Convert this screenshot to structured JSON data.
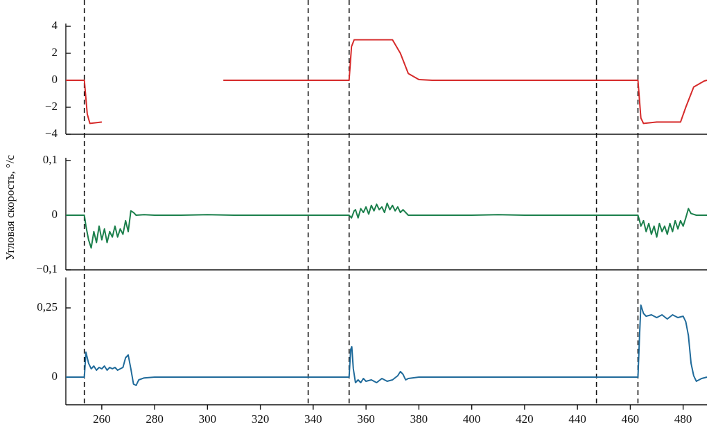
{
  "chart_data": [
    {
      "type": "line",
      "y_label": "Угловая скорость, °/с",
      "xlim": [
        246.4,
        489
      ],
      "ylim": [
        -4,
        4
      ],
      "yticks": [
        {
          "value": -4,
          "label": "−4"
        },
        {
          "value": -2,
          "label": "−2"
        },
        0,
        2,
        4
      ],
      "vlines": [
        253.4,
        338.1,
        353.6,
        447.2,
        462.9
      ],
      "series": [
        {
          "color": "#d62a2a",
          "x": [
            246.4,
            253.4,
            254.5,
            255.5,
            260,
            283,
            306,
            353.6,
            354.5,
            355.5,
            370,
            373,
            376,
            380,
            385,
            462.9,
            464,
            465,
            470,
            479,
            481,
            484,
            488,
            489
          ],
          "values": [
            0,
            0,
            -2.5,
            -3.2,
            -3.1,
            null,
            0,
            0,
            2.5,
            3.0,
            3.0,
            2,
            0.5,
            0.05,
            0,
            0,
            -2.8,
            -3.2,
            -3.1,
            -3.1,
            -2,
            -0.5,
            -0.05,
            0
          ]
        }
      ]
    },
    {
      "type": "line",
      "xlim": [
        246.4,
        489
      ],
      "ylim": [
        -0.1,
        0.1
      ],
      "yticks": [
        {
          "value": -0.1,
          "label": "−0,1"
        },
        0,
        {
          "value": 0.1,
          "label": "0,1"
        }
      ],
      "series": [
        {
          "color": "#1a7f4b",
          "x": [
            246.4,
            252,
            253.4,
            254,
            255,
            256,
            257,
            258,
            259,
            260,
            261,
            262,
            263,
            264,
            265,
            266,
            267,
            268,
            269,
            270,
            271,
            272,
            273,
            276,
            280,
            290,
            300,
            310,
            320,
            330,
            340,
            350,
            353.6,
            354.5,
            355.5,
            356,
            357,
            358,
            359,
            360,
            361,
            362,
            363,
            364,
            365,
            366,
            367,
            368,
            369,
            370,
            371,
            372,
            373,
            374,
            376,
            380,
            390,
            400,
            410,
            420,
            430,
            440,
            450,
            462.9,
            463.5,
            464,
            465,
            466,
            467,
            468,
            469,
            470,
            471,
            472,
            473,
            474,
            475,
            476,
            477,
            478,
            479,
            480,
            481,
            482,
            483,
            485,
            489
          ],
          "values": [
            0,
            0,
            0,
            -0.02,
            -0.045,
            -0.06,
            -0.03,
            -0.05,
            -0.02,
            -0.045,
            -0.025,
            -0.05,
            -0.03,
            -0.04,
            -0.02,
            -0.04,
            -0.025,
            -0.035,
            -0.01,
            -0.03,
            0.008,
            0.005,
            0,
            0.001,
            0,
            0,
            0.001,
            0,
            0,
            0,
            0,
            0,
            0,
            -0.005,
            0.008,
            0.01,
            -0.005,
            0.012,
            0.005,
            0.015,
            0.002,
            0.018,
            0.008,
            0.02,
            0.01,
            0.015,
            0.005,
            0.022,
            0.01,
            0.018,
            0.008,
            0.015,
            0.005,
            0.01,
            0,
            0,
            0,
            0,
            0.001,
            0,
            0,
            0,
            0,
            0,
            -0.01,
            -0.02,
            -0.01,
            -0.03,
            -0.015,
            -0.035,
            -0.02,
            -0.04,
            -0.015,
            -0.03,
            -0.02,
            -0.035,
            -0.015,
            -0.03,
            -0.01,
            -0.025,
            -0.01,
            -0.02,
            -0.005,
            0.012,
            0.003,
            0,
            0
          ]
        }
      ]
    },
    {
      "type": "line",
      "xlim": [
        246.4,
        489
      ],
      "ylim": [
        -0.1,
        0.35
      ],
      "xticks": [
        260,
        280,
        300,
        320,
        340,
        360,
        380,
        400,
        420,
        440,
        460,
        480
      ],
      "yticks": [
        0,
        {
          "value": 0.25,
          "label": "0,25"
        }
      ],
      "series": [
        {
          "color": "#1f6a9a",
          "x": [
            246.4,
            253.4,
            254,
            255,
            256,
            257,
            258,
            259,
            260,
            261,
            262,
            263,
            264,
            265,
            266,
            267,
            268,
            269,
            270,
            271,
            272,
            273,
            274,
            276,
            280,
            300,
            340,
            353.6,
            354.2,
            354.6,
            355.2,
            356,
            357,
            358,
            359,
            360,
            362,
            364,
            366,
            368,
            370,
            372,
            373,
            374,
            375,
            376,
            380,
            420,
            462.9,
            463.5,
            464,
            465,
            466,
            468,
            470,
            472,
            474,
            476,
            478,
            480,
            481,
            482,
            483,
            484,
            485,
            487,
            489
          ],
          "values": [
            0,
            0,
            0.09,
            0.05,
            0.03,
            0.04,
            0.025,
            0.035,
            0.03,
            0.04,
            0.025,
            0.035,
            0.03,
            0.035,
            0.025,
            0.03,
            0.035,
            0.07,
            0.08,
            0.03,
            -0.025,
            -0.03,
            -0.01,
            -0.003,
            0,
            0,
            0,
            0,
            0.1,
            0.11,
            0.03,
            -0.02,
            -0.01,
            -0.02,
            -0.005,
            -0.015,
            -0.01,
            -0.02,
            -0.005,
            -0.015,
            -0.01,
            0.005,
            0.02,
            0.01,
            -0.01,
            -0.005,
            0,
            0,
            0,
            0.15,
            0.26,
            0.23,
            0.22,
            0.225,
            0.215,
            0.225,
            0.21,
            0.225,
            0.215,
            0.22,
            0.2,
            0.15,
            0.05,
            0.005,
            -0.015,
            -0.005,
            0
          ]
        }
      ]
    }
  ]
}
